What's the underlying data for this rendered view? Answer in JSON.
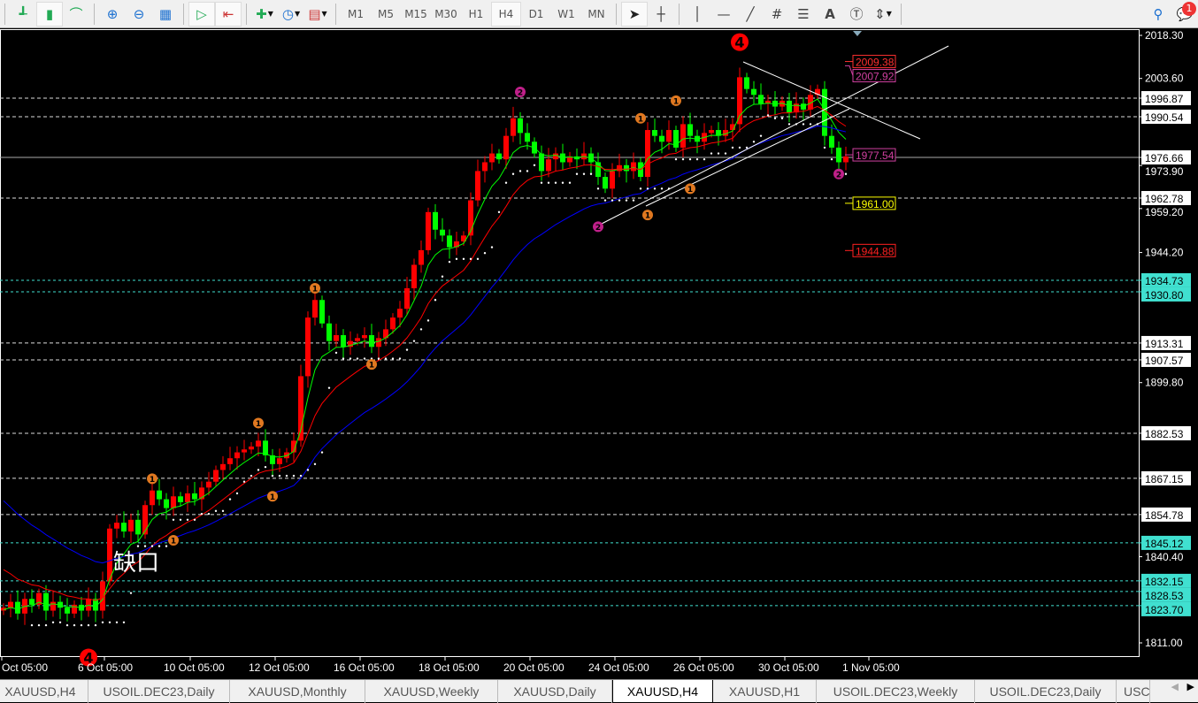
{
  "toolbar": {
    "chart_type_buttons": [
      {
        "icon": "bar-chart-icon"
      },
      {
        "icon": "candlestick-icon",
        "active": true
      },
      {
        "icon": "line-chart-icon"
      }
    ],
    "zoom_buttons": [
      {
        "icon": "zoom-in-icon"
      },
      {
        "icon": "zoom-out-icon"
      },
      {
        "icon": "tile-windows-icon"
      }
    ],
    "scroll_buttons": [
      {
        "icon": "auto-scroll-icon",
        "active": true
      },
      {
        "icon": "chart-shift-icon",
        "active": true
      }
    ],
    "timeframes": [
      "M1",
      "M5",
      "M15",
      "M30",
      "H1",
      "H4",
      "D1",
      "W1",
      "MN"
    ],
    "active_timeframe": "H4",
    "drawing_tools": [
      "cursor-icon",
      "crosshair-icon",
      "vertical-line-icon",
      "horizontal-line-icon",
      "trendline-icon",
      "fibonacci-expansion-icon",
      "fibonacci-retracement-icon",
      "text-icon",
      "text-label-icon",
      "arrows-icon"
    ],
    "text_tool_label": "A",
    "notification_count": "1"
  },
  "chart_data": {
    "type": "candlestick",
    "ylim": [
      1807,
      2021
    ],
    "price_ticks": [
      "2018.30",
      "2003.60",
      "1973.90",
      "1959.20",
      "1944.20",
      "1899.80",
      "1840.40",
      "1811.00"
    ],
    "time_labels": [
      "Oct 05:00",
      "6 Oct 05:00",
      "10 Oct 05:00",
      "12 Oct 05:00",
      "16 Oct 05:00",
      "18 Oct 05:00",
      "20 Oct 05:00",
      "24 Oct 05:00",
      "26 Oct 05:00",
      "30 Oct 05:00",
      "1 Nov 05:00"
    ],
    "closes": [
      1823,
      1825,
      1821,
      1826,
      1824,
      1828,
      1822,
      1825,
      1823,
      1821,
      1824,
      1822,
      1826,
      1822,
      1832,
      1850,
      1852,
      1849,
      1853,
      1848,
      1858,
      1863,
      1860,
      1857,
      1861,
      1859,
      1862,
      1860,
      1864,
      1866,
      1870,
      1872,
      1874,
      1876,
      1877,
      1878,
      1880,
      1875,
      1872,
      1874,
      1876,
      1880,
      1902,
      1922,
      1928,
      1920,
      1914,
      1916,
      1912,
      1914,
      1915,
      1916,
      1912,
      1915,
      1918,
      1922,
      1925,
      1932,
      1940,
      1945,
      1958,
      1952,
      1950,
      1946,
      1948,
      1950,
      1962,
      1972,
      1975,
      1978,
      1976,
      1984,
      1990,
      1985,
      1982,
      1978,
      1972,
      1976,
      1978,
      1975,
      1977,
      1976,
      1978,
      1975,
      1970,
      1966,
      1972,
      1974,
      1972,
      1975,
      1970,
      1986,
      1984,
      1982,
      1986,
      1980,
      1988,
      1984,
      1982,
      1985,
      1986,
      1984,
      1986,
      1988,
      2004,
      2000,
      1998,
      1995,
      1996,
      1994,
      1996,
      1992,
      1995,
      1993,
      1998,
      2000,
      1984,
      1980,
      1975,
      1977
    ],
    "colors": {
      "bull": "#ff0000",
      "bear": "#00ff00",
      "ma_fast": "#00ff00",
      "ma_mid": "#ff0000",
      "ma_slow": "#0000ff",
      "sar": "#ffffff"
    },
    "levels_white": [
      {
        "price": 1996.87,
        "label": "1996.87"
      },
      {
        "price": 1990.54,
        "label": "1990.54"
      },
      {
        "price": 1962.78,
        "label": "1962.78"
      },
      {
        "price": 1913.31,
        "label": "1913.31"
      },
      {
        "price": 1907.57,
        "label": "1907.57"
      },
      {
        "price": 1882.53,
        "label": "1882.53"
      },
      {
        "price": 1867.15,
        "label": "1867.15"
      },
      {
        "price": 1854.78,
        "label": "1854.78"
      }
    ],
    "current_price": {
      "price": 1976.66,
      "label": "1976.66"
    },
    "levels_cyan": [
      {
        "price": 1934.73,
        "label": "1934.73"
      },
      {
        "price": 1930.8,
        "label": "1930.80"
      },
      {
        "price": 1845.12,
        "label": "1845.12"
      },
      {
        "price": 1832.15,
        "label": "1832.15"
      },
      {
        "price": 1828.53,
        "label": "1828.53"
      },
      {
        "price": 1823.7,
        "label": "1823.70"
      }
    ],
    "right_labels": [
      {
        "price": 2009.38,
        "label": "2009.38",
        "color": "#ff3030"
      },
      {
        "price": 2007.92,
        "label": "2007.92",
        "color": "#d040a0"
      },
      {
        "price": 1977.54,
        "label": "1977.54",
        "color": "#d040a0"
      },
      {
        "price": 1961.0,
        "label": "1961.00",
        "color": "#ffff00"
      },
      {
        "price": 1944.88,
        "label": "1944.88",
        "color": "#ff2020"
      }
    ],
    "wave_markers": [
      {
        "label": "1",
        "bar": 21,
        "price": 1867,
        "color": "#e07820"
      },
      {
        "label": "1",
        "bar": 24,
        "price": 1846,
        "color": "#e07820"
      },
      {
        "label": "1",
        "bar": 36,
        "price": 1886,
        "color": "#e07820"
      },
      {
        "label": "1",
        "bar": 38,
        "price": 1861,
        "color": "#e07820"
      },
      {
        "label": "1",
        "bar": 44,
        "price": 1932,
        "color": "#e07820"
      },
      {
        "label": "1",
        "bar": 52,
        "price": 1906,
        "color": "#e07820"
      },
      {
        "label": "1",
        "bar": 90,
        "price": 1990,
        "color": "#e07820"
      },
      {
        "label": "1",
        "bar": 95,
        "price": 1996,
        "color": "#e07820"
      },
      {
        "label": "1",
        "bar": 97,
        "price": 1966,
        "color": "#e07820"
      },
      {
        "label": "1",
        "bar": 91,
        "price": 1957,
        "color": "#e07820"
      },
      {
        "label": "2",
        "bar": 73,
        "price": 1999,
        "color": "#c0208a"
      },
      {
        "label": "2",
        "bar": 84,
        "price": 1953,
        "color": "#c0208a"
      },
      {
        "label": "2",
        "bar": 118,
        "price": 1971,
        "color": "#c0208a"
      },
      {
        "label": "4",
        "bar": 104,
        "price": 2016,
        "color": "#ff0000",
        "big": true
      },
      {
        "label": "4",
        "bar": 12,
        "price": 1806,
        "color": "#ff0000",
        "big": true
      }
    ],
    "annotation": "缺口"
  },
  "tabs": [
    "XAUUSD,H4",
    "USOIL.DEC23,Daily",
    "XAUUSD,Monthly",
    "XAUUSD,Weekly",
    "XAUUSD,Daily",
    "XAUUSD,H4",
    "XAUUSD,H1",
    "USOIL.DEC23,Weekly",
    "USOIL.DEC23,Daily",
    "USC"
  ],
  "active_tab": 5
}
